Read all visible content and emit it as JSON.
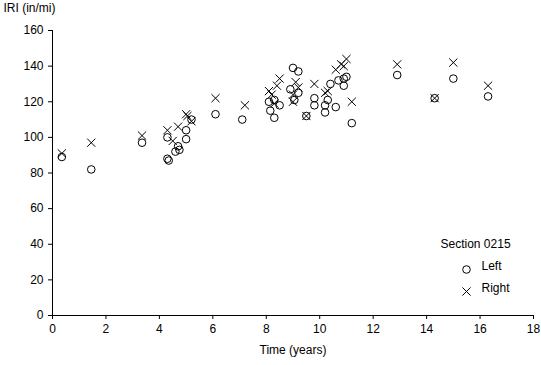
{
  "chart_data": {
    "type": "scatter",
    "x_label": "Time (years)",
    "y_label": "IRI (in/mi)",
    "xlim": [
      0,
      18
    ],
    "xticks": [
      0,
      2,
      4,
      6,
      8,
      10,
      12,
      14,
      16,
      18
    ],
    "ylim": [
      0,
      160
    ],
    "yticks": [
      0,
      20,
      40,
      60,
      80,
      100,
      120,
      140,
      160
    ],
    "grid": false,
    "legend": "lower right",
    "annotations": [
      "Section 0215"
    ],
    "series": [
      {
        "name": "Left",
        "color": "#000000",
        "marker": "circle",
        "x": [
          0.35,
          1.45,
          3.35,
          4.3,
          4.35,
          4.3,
          4.6,
          4.7,
          4.75,
          5.0,
          5.0,
          5.2,
          6.1,
          7.1,
          8.1,
          8.15,
          8.3,
          8.3,
          8.5,
          8.9,
          9.0,
          9.05,
          9.2,
          9.2,
          9.5,
          9.8,
          9.8,
          10.2,
          10.2,
          10.3,
          10.4,
          10.6,
          10.7,
          10.9,
          10.9,
          11.0,
          11.2,
          12.9,
          14.3,
          15.0,
          16.3
        ],
        "values": [
          89,
          82,
          97,
          88,
          87,
          100,
          92,
          95,
          93,
          104,
          99,
          110,
          113,
          110,
          120,
          115,
          111,
          121,
          118,
          127,
          139,
          121,
          137,
          125,
          112,
          118,
          122,
          118,
          114,
          121,
          130,
          117,
          132,
          129,
          133,
          134,
          108,
          135,
          122,
          133,
          123
        ]
      },
      {
        "name": "Right",
        "color": "#000000",
        "marker": "x",
        "x": [
          0.35,
          1.45,
          3.35,
          4.3,
          4.5,
          4.7,
          5.0,
          5.05,
          5.2,
          6.1,
          7.2,
          8.1,
          8.2,
          8.3,
          8.4,
          8.5,
          9.0,
          9.0,
          9.1,
          9.2,
          9.5,
          9.8,
          10.2,
          10.3,
          10.6,
          10.8,
          10.9,
          11.0,
          11.2,
          12.9,
          14.3,
          15.0,
          16.3
        ],
        "values": [
          91,
          97,
          101,
          104,
          98,
          106,
          113,
          112,
          109,
          122,
          118,
          126,
          124,
          119,
          129,
          133,
          120,
          124,
          131,
          128,
          112,
          130,
          125,
          126,
          138,
          141,
          140,
          144,
          120,
          141,
          122,
          142,
          129
        ]
      }
    ]
  }
}
